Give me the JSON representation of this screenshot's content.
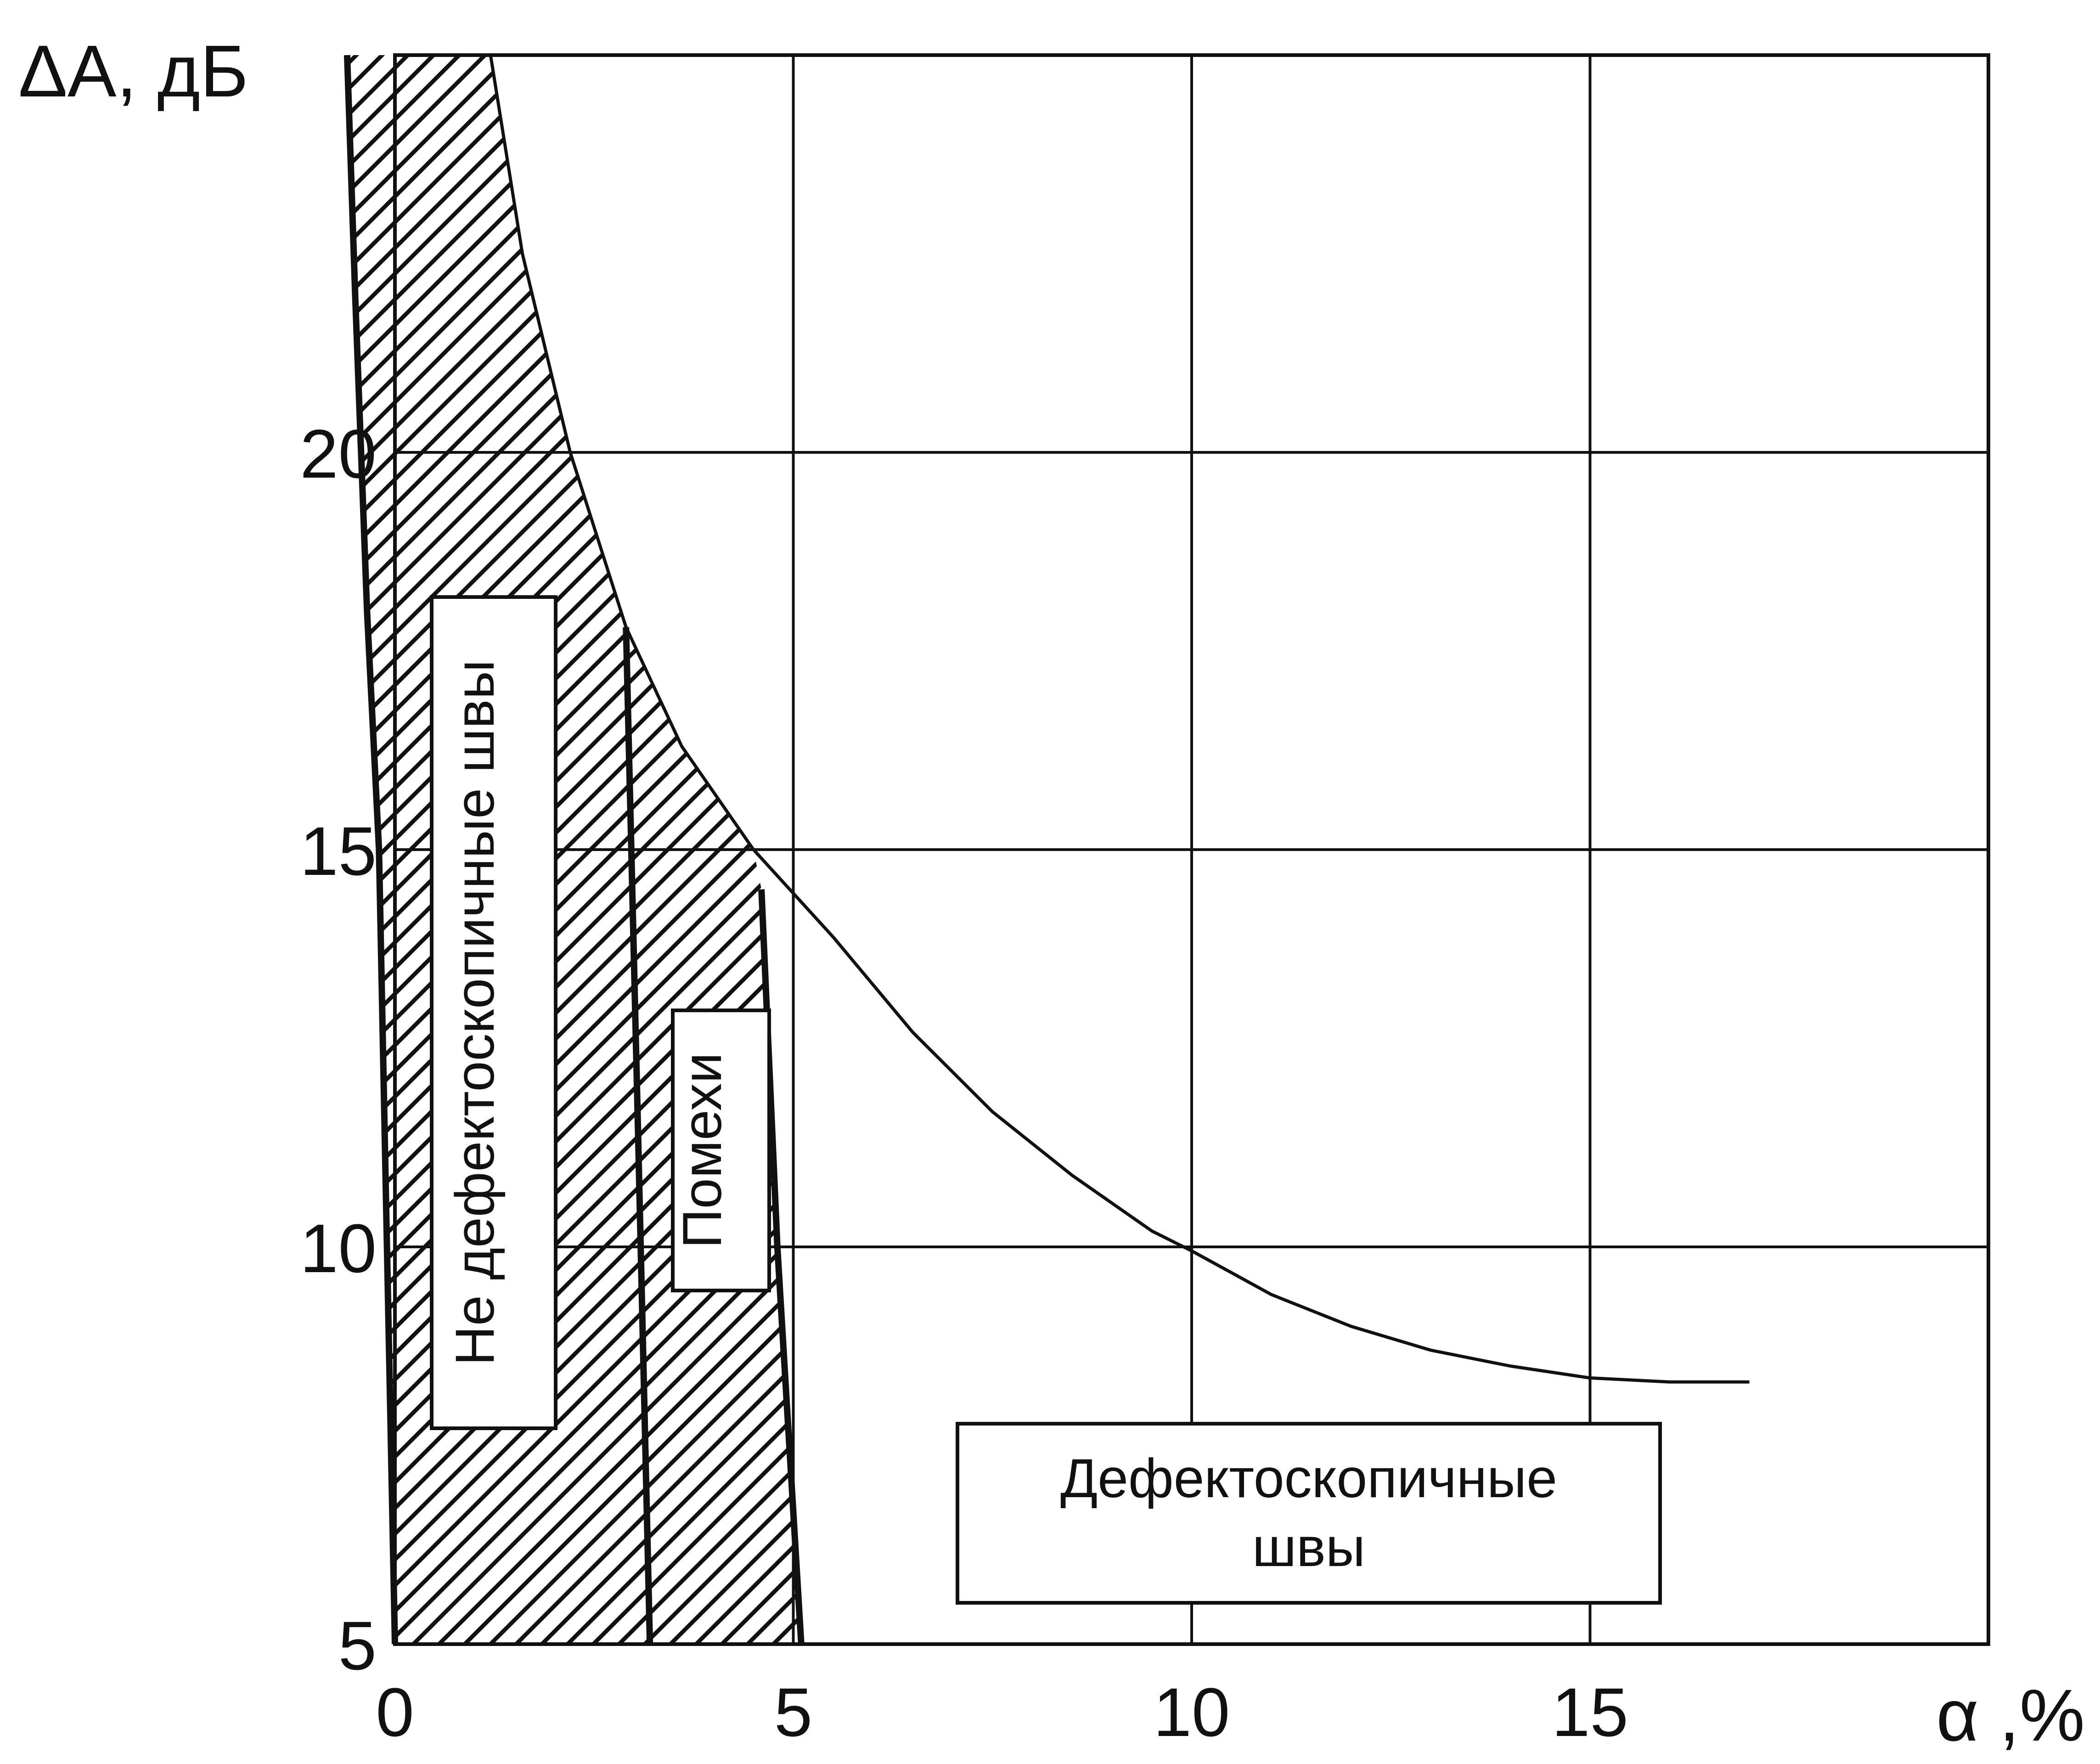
{
  "chart_data": {
    "type": "area",
    "xlabel": "α ,%",
    "ylabel": "ΔA, дБ",
    "xlim": [
      0,
      20
    ],
    "ylim": [
      5,
      25
    ],
    "grid": true,
    "x_ticks": [
      "0",
      "5",
      "10",
      "15"
    ],
    "y_ticks": [
      "5",
      "10",
      "15",
      "20"
    ],
    "boundaries": {
      "left": {
        "x": [
          -0.6,
          -0.5,
          -0.35,
          -0.2,
          0
        ],
        "y": [
          25,
          22,
          18,
          15,
          5
        ]
      },
      "middle": {
        "x": [
          2.9,
          3.05,
          3.2
        ],
        "y": [
          17.8,
          11.5,
          5
        ]
      },
      "right": {
        "x": [
          4.6,
          4.8,
          5.1
        ],
        "y": [
          14.5,
          10,
          5
        ]
      },
      "curve": {
        "x": [
          1.2,
          1.6,
          2.2,
          2.9,
          3.6,
          4.5,
          5.5,
          6.5,
          7.5,
          8.5,
          9.5,
          10,
          11,
          12,
          13,
          14,
          15,
          16,
          17
        ],
        "y": [
          25,
          22.5,
          20,
          17.8,
          16.3,
          15,
          13.9,
          12.7,
          11.7,
          10.9,
          10.2,
          9.95,
          9.4,
          9,
          8.7,
          8.5,
          8.35,
          8.3,
          8.3
        ]
      }
    },
    "regions": [
      {
        "label": "Не дефектоскопичные швы"
      },
      {
        "label": "Помехи"
      },
      {
        "label_lines": [
          "Дефектоскопичные",
          "швы"
        ]
      }
    ]
  }
}
